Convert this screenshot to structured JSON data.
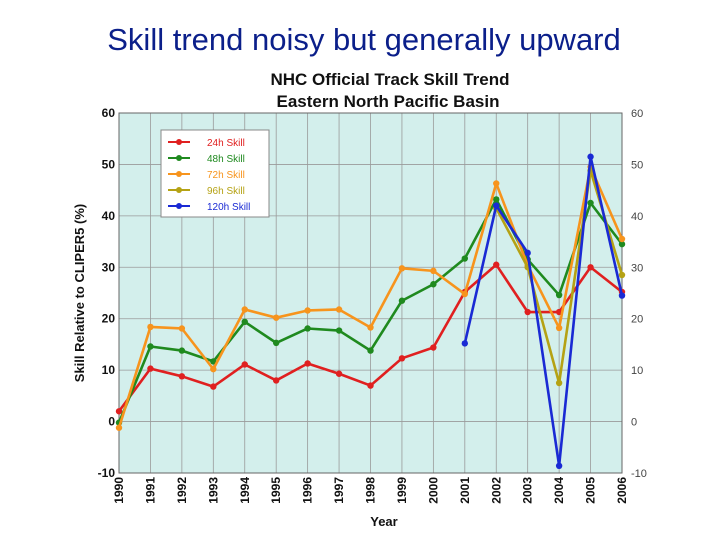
{
  "slide_title": "Skill trend noisy but generally upward",
  "chart_data": {
    "type": "line",
    "title": "NHC Official Track Skill Trend",
    "subtitle": "Eastern North Pacific Basin",
    "xlabel": "Year",
    "ylabel": "Skill Relative to CLIPER5 (%)",
    "ylim": [
      -10,
      60
    ],
    "yticks": [
      -10,
      0,
      10,
      20,
      30,
      40,
      50,
      60
    ],
    "y2ticks": [
      -10,
      0,
      10,
      20,
      30,
      40,
      50,
      60
    ],
    "grid": true,
    "legend_position": "top-left",
    "background_color": "#d3efec",
    "x": [
      "1990",
      "1991",
      "1992",
      "1993",
      "1994",
      "1995",
      "1996",
      "1997",
      "1998",
      "1999",
      "2000",
      "2001",
      "2002",
      "2003",
      "2004",
      "2005",
      "2006"
    ],
    "series": [
      {
        "name": "24h Skill",
        "color": "#e02020",
        "values": [
          2,
          10.3,
          8.8,
          6.8,
          11.1,
          8,
          11.3,
          9.3,
          7,
          12.3,
          14.4,
          25.2,
          30.5,
          21.3,
          21.3,
          30,
          25.2
        ]
      },
      {
        "name": "48h Skill",
        "color": "#1f8a1f",
        "values": [
          -0.2,
          14.6,
          13.8,
          11.7,
          19.4,
          15.3,
          18.1,
          17.7,
          13.8,
          23.5,
          26.7,
          31.7,
          43.2,
          31.5,
          24.6,
          42.5,
          34.5
        ]
      },
      {
        "name": "72h Skill",
        "color": "#f7941d",
        "values": [
          -1.2,
          18.4,
          18.1,
          10.2,
          21.8,
          20.2,
          21.6,
          21.8,
          18.3,
          29.8,
          29.3,
          24.8,
          46.3,
          30.4,
          18.2,
          49.5,
          35.5
        ]
      },
      {
        "name": "96h Skill",
        "color": "#b5a214",
        "values": [
          null,
          null,
          null,
          null,
          null,
          null,
          null,
          null,
          null,
          null,
          null,
          null,
          41.5,
          30,
          7.5,
          48.8,
          28.5
        ]
      },
      {
        "name": "120h Skill",
        "color": "#1a2ad4",
        "values": [
          null,
          null,
          null,
          null,
          null,
          null,
          null,
          null,
          null,
          null,
          null,
          15.2,
          42,
          32.8,
          -8.6,
          51.5,
          24.5
        ]
      }
    ]
  }
}
